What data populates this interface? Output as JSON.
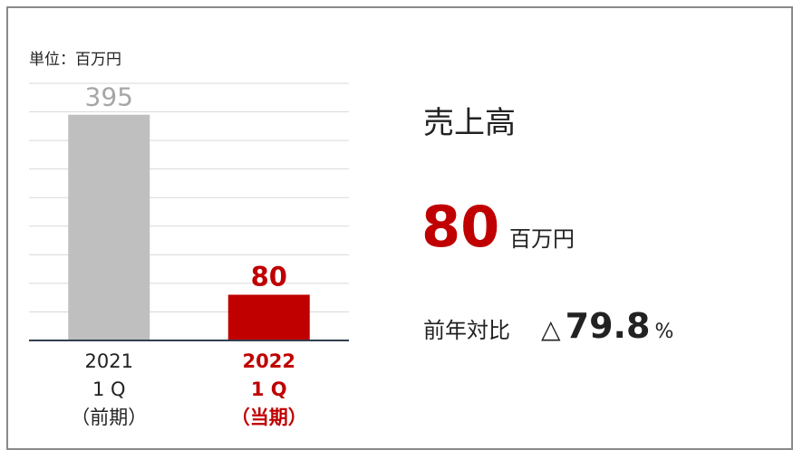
{
  "chart_data": {
    "type": "bar",
    "unit_label": "単位：百万円",
    "categories": [
      [
        "2021",
        "1 Q",
        "（前期）"
      ],
      [
        "2022",
        "1 Q",
        "（当期）"
      ]
    ],
    "values": [
      395,
      80
    ],
    "colors": [
      "#bfbfbf",
      "#c00000"
    ],
    "label_colors": [
      "#a6a6a6",
      "#c00000"
    ],
    "category_colors": [
      "#222222",
      "#c00000"
    ],
    "highlight": 1,
    "ylim": [
      0,
      450
    ],
    "yticks": [
      0,
      50,
      100,
      150,
      200,
      250,
      300,
      350,
      400,
      450
    ],
    "grid": true
  },
  "summary": {
    "title": "売上高",
    "value": "80",
    "unit": "百万円",
    "yoy_label": "前年対比",
    "yoy_prefix": "△",
    "yoy_value": "79.8",
    "yoy_unit": "%"
  }
}
